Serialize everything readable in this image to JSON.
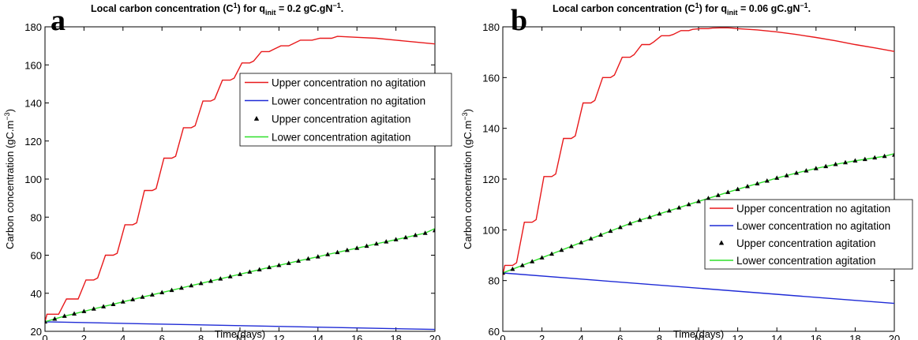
{
  "chart_data": [
    {
      "panel": "a",
      "type": "line",
      "title": "Local carbon concentration (C¹) for qᵢₙᵢₜ = 0.2 gC.gN⁻¹.",
      "title_parts": {
        "pre": "Local carbon concentration (C",
        "sup": "1",
        "mid": ") for q",
        "sub": "init",
        "post": " = 0.2 gC.gN",
        "post_sup": "−1",
        "end": "."
      },
      "xlabel": "Time(days)",
      "ylabel_parts": {
        "pre": "Carbon concentration (gC.m",
        "sup": "−3",
        "post": ")"
      },
      "xlim": [
        0,
        20
      ],
      "ylim": [
        20,
        180
      ],
      "xticks": [
        0,
        2,
        4,
        6,
        8,
        10,
        12,
        14,
        16,
        18,
        20
      ],
      "yticks": [
        20,
        40,
        60,
        80,
        100,
        120,
        140,
        160,
        180
      ],
      "legend_position": "upper-right",
      "series": [
        {
          "name": "Upper concentration no agitation",
          "color": "#e8191b",
          "style": "line",
          "x": [
            0,
            0.1,
            0.5,
            0.7,
            1.1,
            1.5,
            1.7,
            2.1,
            2.5,
            2.7,
            3.1,
            3.5,
            3.7,
            4.1,
            4.5,
            4.7,
            5.1,
            5.5,
            5.7,
            6.1,
            6.5,
            6.7,
            7.1,
            7.5,
            7.7,
            8.1,
            8.5,
            8.7,
            9.1,
            9.5,
            9.7,
            10.1,
            10.5,
            10.7,
            11.1,
            11.5,
            11.7,
            12.1,
            12.5,
            12.7,
            13.1,
            13.5,
            13.7,
            14.1,
            14.5,
            14.7,
            15,
            16,
            17,
            18,
            19,
            20
          ],
          "y": [
            25,
            29,
            29,
            29,
            37,
            37,
            37,
            47,
            47,
            48,
            60,
            60,
            61,
            76,
            76,
            77,
            94,
            94,
            95,
            111,
            111,
            112,
            127,
            127,
            128,
            141,
            141,
            142,
            152,
            152,
            153,
            161,
            161,
            162,
            167,
            167,
            168,
            170,
            170,
            171,
            173,
            173,
            173,
            174,
            174,
            174,
            175,
            174.5,
            174,
            173,
            172,
            171
          ]
        },
        {
          "name": "Lower concentration no agitation",
          "color": "#1f2bd6",
          "style": "line",
          "x": [
            0,
            5,
            10,
            15,
            20
          ],
          "y": [
            25,
            24,
            23,
            22,
            21
          ]
        },
        {
          "name": "Upper concentration agitation",
          "color": "#000000",
          "style": "triangle-markers",
          "x": [
            0,
            0.5,
            1,
            1.5,
            2,
            2.5,
            3,
            3.5,
            4,
            4.5,
            5,
            5.5,
            6,
            6.5,
            7,
            7.5,
            8,
            8.5,
            9,
            9.5,
            10,
            10.5,
            11,
            11.5,
            12,
            12.5,
            13,
            13.5,
            14,
            14.5,
            15,
            15.5,
            16,
            16.5,
            17,
            17.5,
            18,
            18.5,
            19,
            19.5,
            20
          ],
          "y": [
            25,
            26.5,
            28,
            29.2,
            30.5,
            31.8,
            33,
            34.2,
            35.5,
            36.7,
            38,
            39.2,
            40.4,
            41.6,
            42.8,
            44,
            45.2,
            46.4,
            47.6,
            48.8,
            50,
            51.2,
            52.4,
            53.6,
            54.7,
            55.8,
            57,
            58.1,
            59.2,
            60.4,
            61.5,
            62.6,
            63.7,
            64.8,
            66,
            67.1,
            68.2,
            69.3,
            70.5,
            71.6,
            73
          ]
        },
        {
          "name": "Lower concentration agitation",
          "color": "#2fe02a",
          "style": "line",
          "x": [
            0,
            0.5,
            1,
            1.5,
            2,
            2.5,
            3,
            3.5,
            4,
            4.5,
            5,
            5.5,
            6,
            6.5,
            7,
            7.5,
            8,
            8.5,
            9,
            9.5,
            10,
            10.5,
            11,
            11.5,
            12,
            12.5,
            13,
            13.5,
            14,
            14.5,
            15,
            15.5,
            16,
            16.5,
            17,
            17.5,
            18,
            18.5,
            19,
            19.5,
            20
          ],
          "y": [
            25,
            26.5,
            28,
            29.2,
            30.5,
            31.8,
            33,
            34.2,
            35.5,
            36.7,
            38,
            39.2,
            40.4,
            41.6,
            42.8,
            44,
            45.2,
            46.4,
            47.6,
            48.8,
            50,
            51.2,
            52.4,
            53.6,
            54.7,
            55.8,
            57,
            58.1,
            59.2,
            60.4,
            61.5,
            62.6,
            63.7,
            64.8,
            66,
            67.1,
            68.2,
            69.3,
            70.5,
            71.6,
            74
          ]
        }
      ]
    },
    {
      "panel": "b",
      "type": "line",
      "title": "Local carbon concentration (C¹) for qᵢₙᵢₜ = 0.06 gC.gN⁻¹.",
      "title_parts": {
        "pre": "Local carbon concentration (C",
        "sup": "1",
        "mid": ") for q",
        "sub": "init",
        "post": " = 0.06 gC.gN",
        "post_sup": "−1",
        "end": "."
      },
      "xlabel": "Time(days)",
      "ylabel_parts": {
        "pre": "Carbon concentration (gC.m",
        "sup": "−3",
        "post": ")"
      },
      "xlim": [
        0,
        20
      ],
      "ylim": [
        60,
        180
      ],
      "xticks": [
        0,
        2,
        4,
        6,
        8,
        10,
        12,
        14,
        16,
        18,
        20
      ],
      "yticks": [
        60,
        80,
        100,
        120,
        140,
        160,
        180
      ],
      "legend_position": "lower-right",
      "series": [
        {
          "name": "Upper concentration no agitation",
          "color": "#e8191b",
          "style": "line",
          "x": [
            0,
            0.1,
            0.5,
            0.7,
            1.1,
            1.5,
            1.7,
            2.1,
            2.5,
            2.7,
            3.1,
            3.5,
            3.7,
            4.1,
            4.5,
            4.7,
            5.1,
            5.5,
            5.7,
            6.1,
            6.5,
            6.7,
            7.1,
            7.5,
            7.7,
            8.1,
            8.5,
            8.7,
            9.1,
            9.5,
            9.7,
            10.1,
            10.5,
            10.7,
            11.1,
            11.5,
            11.7,
            12,
            13,
            14,
            15,
            16,
            17,
            18,
            19,
            20
          ],
          "y": [
            82,
            86,
            86,
            87,
            103,
            103,
            104,
            121,
            121,
            122,
            136,
            136,
            137,
            150,
            150,
            151,
            160,
            160,
            161,
            168,
            168,
            169,
            173,
            173,
            174,
            176.5,
            176.5,
            177,
            178.5,
            178.5,
            179,
            179.3,
            179.3,
            179.5,
            179.6,
            179.6,
            179.5,
            179.3,
            178.8,
            178,
            177,
            175.8,
            174.5,
            173,
            171.7,
            170.3
          ]
        },
        {
          "name": "Lower concentration no agitation",
          "color": "#1f2bd6",
          "style": "line",
          "x": [
            0,
            5,
            10,
            15,
            20
          ],
          "y": [
            83,
            80,
            77,
            74,
            71
          ]
        },
        {
          "name": "Upper concentration agitation",
          "color": "#000000",
          "style": "triangle-markers",
          "x": [
            0,
            0.5,
            1,
            1.5,
            2,
            2.5,
            3,
            3.5,
            4,
            4.5,
            5,
            5.5,
            6,
            6.5,
            7,
            7.5,
            8,
            8.5,
            9,
            9.5,
            10,
            10.5,
            11,
            11.5,
            12,
            12.5,
            13,
            13.5,
            14,
            14.5,
            15,
            15.5,
            16,
            16.5,
            17,
            17.5,
            18,
            18.5,
            19,
            19.5,
            20
          ],
          "y": [
            83,
            84.5,
            86,
            87.5,
            89,
            90.5,
            92,
            93.5,
            95,
            96.5,
            98,
            99.5,
            101,
            102.5,
            103.8,
            105,
            106.3,
            107.5,
            108.7,
            110,
            111.2,
            112.4,
            113.6,
            114.8,
            116,
            117.1,
            118.2,
            119.3,
            120.4,
            121.4,
            122.4,
            123.3,
            124.2,
            125,
            125.8,
            126.5,
            127.2,
            127.8,
            128.4,
            129,
            129.5
          ]
        },
        {
          "name": "Lower concentration agitation",
          "color": "#2fe02a",
          "style": "line",
          "x": [
            0,
            0.5,
            1,
            1.5,
            2,
            2.5,
            3,
            3.5,
            4,
            4.5,
            5,
            5.5,
            6,
            6.5,
            7,
            7.5,
            8,
            8.5,
            9,
            9.5,
            10,
            10.5,
            11,
            11.5,
            12,
            12.5,
            13,
            13.5,
            14,
            14.5,
            15,
            15.5,
            16,
            16.5,
            17,
            17.5,
            18,
            18.5,
            19,
            19.5,
            20
          ],
          "y": [
            83,
            84.5,
            86,
            87.5,
            89,
            90.5,
            92,
            93.5,
            95,
            96.5,
            98,
            99.5,
            101,
            102.5,
            103.8,
            105,
            106.3,
            107.5,
            108.7,
            110,
            111.2,
            112.4,
            113.6,
            114.8,
            116,
            117.1,
            118.2,
            119.3,
            120.4,
            121.4,
            122.4,
            123.3,
            124.2,
            125,
            125.8,
            126.5,
            127.2,
            127.8,
            128.4,
            129,
            130
          ]
        }
      ]
    }
  ]
}
